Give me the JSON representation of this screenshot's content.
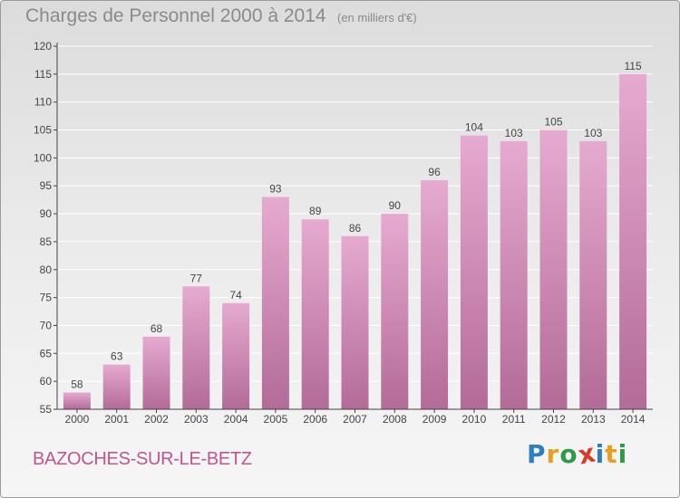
{
  "header": {
    "title": "Charges de Personnel 2000 à 2014",
    "unit": "(en milliers d'€)"
  },
  "footer": {
    "commune": "BAZOCHES-SUR-LE-BETZ",
    "logo": "Proxiti",
    "logo_letters": [
      {
        "ch": "P",
        "color": "#2e7fc0"
      },
      {
        "ch": "r",
        "color": "#e8a020"
      },
      {
        "ch": "o",
        "color": "#2e9a48"
      },
      {
        "ch": "x",
        "color": "#d83a2a"
      },
      {
        "ch": "i",
        "color": "#2e7fc0"
      },
      {
        "ch": "t",
        "color": "#e8a020"
      },
      {
        "ch": "i",
        "color": "#2e9a48"
      }
    ]
  },
  "colors": {
    "bar_top": "#e6aad0",
    "bar_bottom": "#b36b98",
    "axis": "#444444",
    "grid": "#ffffff",
    "text": "#444444"
  },
  "chart_data": {
    "type": "bar",
    "title": "Charges de Personnel 2000 à 2014",
    "categories": [
      "2000",
      "2001",
      "2002",
      "2003",
      "2004",
      "2005",
      "2006",
      "2007",
      "2008",
      "2009",
      "2010",
      "2011",
      "2012",
      "2013",
      "2014"
    ],
    "values": [
      58,
      63,
      68,
      77,
      74,
      93,
      89,
      86,
      90,
      96,
      104,
      103,
      105,
      103,
      115
    ],
    "ylim": [
      55,
      120
    ],
    "yticks": [
      55,
      60,
      65,
      70,
      75,
      80,
      85,
      90,
      95,
      100,
      105,
      110,
      115,
      120
    ],
    "grid": true,
    "xlabel": "",
    "ylabel": ""
  }
}
